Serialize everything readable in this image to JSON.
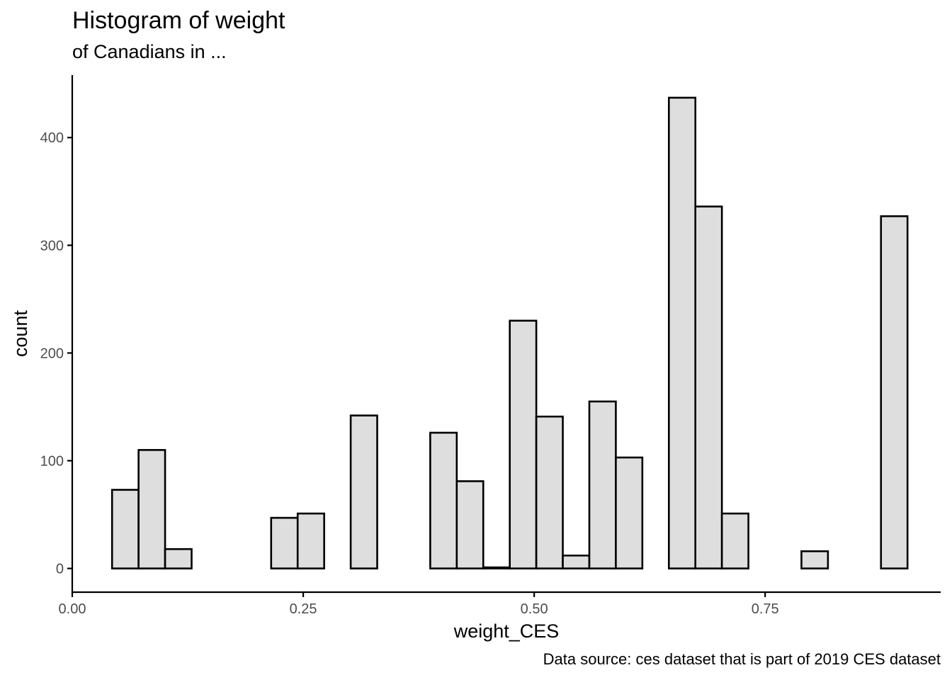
{
  "chart_data": {
    "type": "bar",
    "title": "Histogram of weight",
    "subtitle": "of Canadians in ...",
    "caption": "Data source: ces dataset that is part of 2019 CES dataset",
    "xlabel": "weight_CES",
    "ylabel": "count",
    "xlim": [
      0.0,
      0.94
    ],
    "ylim": [
      -22,
      458
    ],
    "xticks": [
      {
        "value": 0.0,
        "label": "0.00"
      },
      {
        "value": 0.25,
        "label": "0.25"
      },
      {
        "value": 0.5,
        "label": "0.50"
      },
      {
        "value": 0.75,
        "label": "0.75"
      }
    ],
    "yticks": [
      {
        "value": 0,
        "label": "0"
      },
      {
        "value": 100,
        "label": "100"
      },
      {
        "value": 200,
        "label": "200"
      },
      {
        "value": 300,
        "label": "300"
      },
      {
        "value": 400,
        "label": "400"
      }
    ],
    "grid": false,
    "bar_fill": "#dedede",
    "bar_stroke": "#000000",
    "bin_width": 0.0287,
    "bins": [
      {
        "x0": 0.0431,
        "count": 73
      },
      {
        "x0": 0.0718,
        "count": 110
      },
      {
        "x0": 0.1005,
        "count": 18
      },
      {
        "x0": 0.1292,
        "count": 0
      },
      {
        "x0": 0.1579,
        "count": 0
      },
      {
        "x0": 0.1866,
        "count": 0
      },
      {
        "x0": 0.2153,
        "count": 47
      },
      {
        "x0": 0.244,
        "count": 51
      },
      {
        "x0": 0.2727,
        "count": 0
      },
      {
        "x0": 0.3014,
        "count": 142
      },
      {
        "x0": 0.3301,
        "count": 0
      },
      {
        "x0": 0.3588,
        "count": 0
      },
      {
        "x0": 0.3875,
        "count": 126
      },
      {
        "x0": 0.4162,
        "count": 81
      },
      {
        "x0": 0.4449,
        "count": 1
      },
      {
        "x0": 0.4736,
        "count": 230
      },
      {
        "x0": 0.5023,
        "count": 141
      },
      {
        "x0": 0.531,
        "count": 12
      },
      {
        "x0": 0.5597,
        "count": 155
      },
      {
        "x0": 0.5884,
        "count": 103
      },
      {
        "x0": 0.6171,
        "count": 0
      },
      {
        "x0": 0.6458,
        "count": 437
      },
      {
        "x0": 0.6745,
        "count": 336
      },
      {
        "x0": 0.7032,
        "count": 51
      },
      {
        "x0": 0.7319,
        "count": 0
      },
      {
        "x0": 0.7606,
        "count": 0
      },
      {
        "x0": 0.7893,
        "count": 16
      },
      {
        "x0": 0.818,
        "count": 0
      },
      {
        "x0": 0.8467,
        "count": 0
      },
      {
        "x0": 0.8754,
        "count": 327
      }
    ]
  }
}
